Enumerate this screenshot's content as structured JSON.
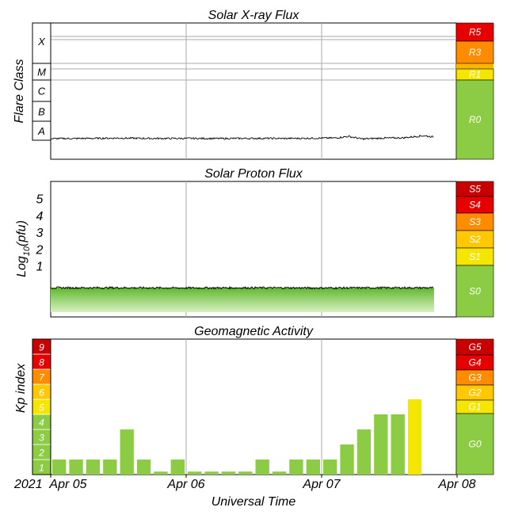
{
  "chart_data": [
    {
      "type": "line",
      "title": "Solar X-ray Flux",
      "ylabel": "Flare Class",
      "class_labels": [
        "A",
        "B",
        "C",
        "M",
        "X"
      ],
      "scale": [
        {
          "label": "R5",
          "color": "#e60000"
        },
        {
          "label": "R3",
          "color": "#ff8c00"
        },
        {
          "label": "R1",
          "color": "#f5e600"
        },
        {
          "label": "R0",
          "color": "#8ccc44"
        }
      ],
      "series": [
        {
          "x": [
            0,
            0.25,
            0.5,
            0.75,
            1.0,
            1.25,
            1.5,
            1.75,
            2.0,
            2.1,
            2.2,
            2.3,
            2.45,
            2.6,
            2.75,
            2.83
          ],
          "y": [
            0.7,
            0.75,
            0.9,
            0.75,
            0.78,
            0.72,
            0.8,
            0.75,
            0.9,
            0.95,
            1.6,
            0.55,
            0.9,
            1.0,
            1.9,
            1.35
          ]
        }
      ]
    },
    {
      "type": "line",
      "title": "Solar Proton Flux",
      "ylabel": "Log10(pfu)",
      "ylabel_main": "Log",
      "ylabel_sub": "10",
      "ylabel_tail": "(pfu)",
      "yticks": [
        "1",
        "2",
        "3",
        "4",
        "5"
      ],
      "ylim": [
        -1.7,
        6.0
      ],
      "scale": [
        {
          "label": "S5",
          "color": "#c80000"
        },
        {
          "label": "S4",
          "color": "#e60000"
        },
        {
          "label": "S3",
          "color": "#ff8c00"
        },
        {
          "label": "S2",
          "color": "#ffc800"
        },
        {
          "label": "S1",
          "color": "#f5e600"
        },
        {
          "label": "S0",
          "color": "#8ccc44"
        }
      ],
      "series": [
        {
          "x": [
            0,
            0.5,
            1.0,
            1.5,
            2.0,
            2.5,
            2.83
          ],
          "y": [
            -0.01,
            -0.01,
            -0.02,
            -0.01,
            -0.02,
            -0.01,
            -0.01
          ]
        }
      ]
    },
    {
      "type": "bar",
      "title": "Geomagnetic Activity",
      "ylabel": "Kp index",
      "xlabel": "Universal Time",
      "year_label": "2021",
      "xtick_labels": [
        "Apr 05",
        "Apr 06",
        "Apr 07",
        "Apr 08"
      ],
      "ylim": [
        0,
        9
      ],
      "kp_levels": [
        {
          "label": "1",
          "color": "#8ccc44"
        },
        {
          "label": "2",
          "color": "#8ccc44"
        },
        {
          "label": "3",
          "color": "#8ccc44"
        },
        {
          "label": "4",
          "color": "#8ccc44"
        },
        {
          "label": "5",
          "color": "#f5e600"
        },
        {
          "label": "6",
          "color": "#ffc800"
        },
        {
          "label": "7",
          "color": "#ff8c00"
        },
        {
          "label": "8",
          "color": "#e60000"
        },
        {
          "label": "9",
          "color": "#c80000"
        }
      ],
      "scale": [
        {
          "label": "G5",
          "color": "#c80000"
        },
        {
          "label": "G4",
          "color": "#e60000"
        },
        {
          "label": "G3",
          "color": "#ff8c00"
        },
        {
          "label": "G2",
          "color": "#ffc800"
        },
        {
          "label": "G1",
          "color": "#f5e600"
        },
        {
          "label": "G0",
          "color": "#8ccc44"
        }
      ],
      "values": [
        1,
        1,
        1,
        1,
        3,
        1,
        0.2,
        1,
        0.2,
        0.2,
        0.2,
        0.2,
        1,
        0.2,
        1,
        1,
        1,
        2,
        3,
        4,
        4,
        5
      ],
      "bar_colors": {
        "quiet": "#8ccc44",
        "storm": "#f5e600"
      }
    }
  ]
}
